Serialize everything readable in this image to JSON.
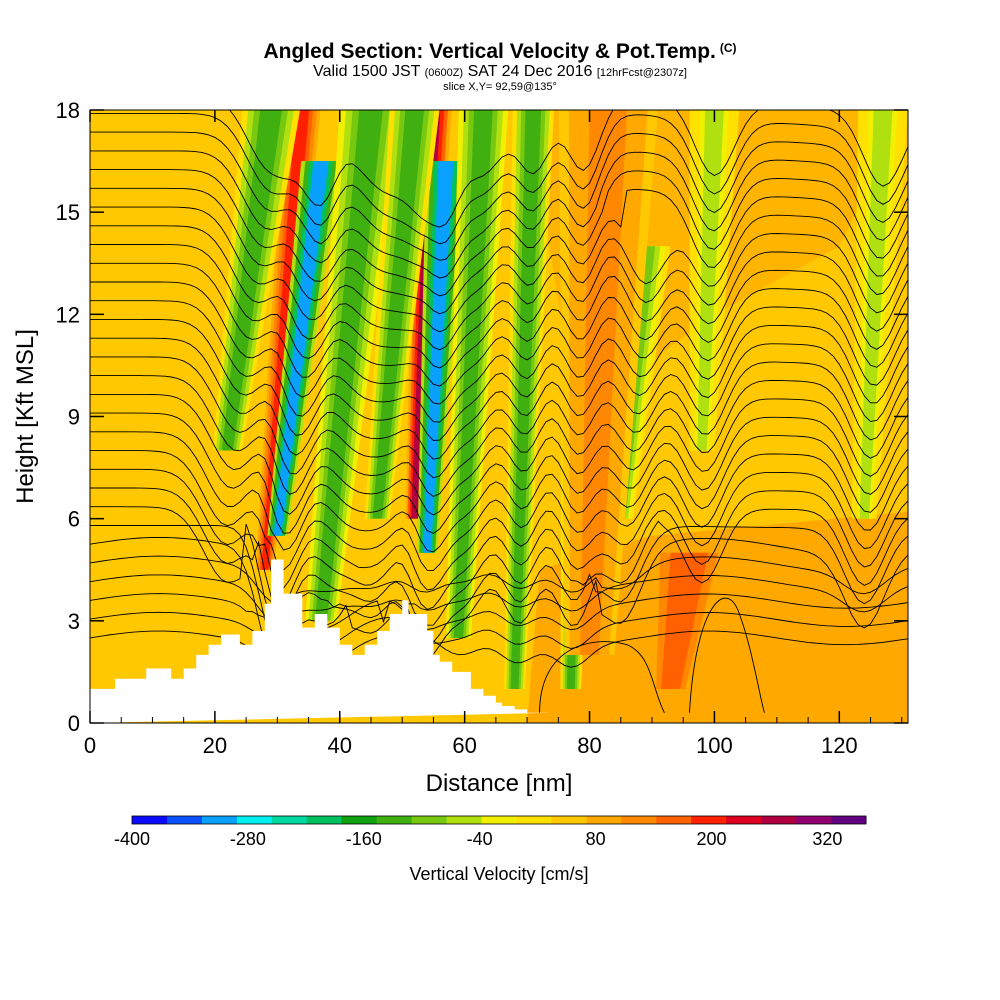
{
  "title": {
    "main": "Angled Section: Vertical Velocity & Pot.Temp.",
    "badge": "(C)",
    "valid_prefix": "Valid 1500 JST",
    "valid_utc": "(0600Z)",
    "valid_date": "SAT 24 Dec 2016",
    "forecast": "[12hrFcst@2307z]",
    "slice": "slice X,Y= 92,59@135°"
  },
  "chart_data": {
    "type": "heatmap",
    "xlabel": "Distance [nm]",
    "ylabel": "Height [Kft MSL]",
    "xlim": [
      0,
      131
    ],
    "ylim": [
      0,
      18
    ],
    "x_ticks": [
      0,
      20,
      40,
      60,
      80,
      100,
      120
    ],
    "y_ticks": [
      0,
      3,
      6,
      9,
      12,
      15,
      18
    ],
    "colorbar": {
      "label": "Vertical Velocity [cm/s]",
      "range": [
        -400,
        360
      ],
      "tick_labels": [
        -400,
        -280,
        -160,
        -40,
        80,
        200,
        320
      ],
      "colors": [
        "#0a0aff",
        "#0a50ff",
        "#0aa0ff",
        "#00f0f0",
        "#00d8a0",
        "#00c060",
        "#10a010",
        "#40b010",
        "#78c810",
        "#b0e010",
        "#f0f000",
        "#ffe000",
        "#ffc800",
        "#ffa800",
        "#ff8800",
        "#ff6000",
        "#ff2000",
        "#e00020",
        "#b00040",
        "#900070",
        "#600080"
      ]
    },
    "background_velocity": 40,
    "plumes": [
      {
        "x_top": 34,
        "x_bottom": 28,
        "y_top": 18,
        "y_bottom": 4.5,
        "value": 190,
        "width": 2.2
      },
      {
        "x_top": 37,
        "x_bottom": 30,
        "y_top": 16.5,
        "y_bottom": 5.5,
        "value": -300,
        "width": 2.4
      },
      {
        "x_top": 29,
        "x_bottom": 22,
        "y_top": 18,
        "y_bottom": 8,
        "value": -120,
        "width": 3.5
      },
      {
        "x_top": 45,
        "x_bottom": 37,
        "y_top": 18,
        "y_bottom": 3,
        "value": -140,
        "width": 3.8
      },
      {
        "x_top": 55,
        "x_bottom": 52,
        "y_top": 18,
        "y_bottom": 6,
        "value": 260,
        "width": 2.2
      },
      {
        "x_top": 57,
        "x_bottom": 54,
        "y_top": 16.5,
        "y_bottom": 5,
        "value": -300,
        "width": 2.4
      },
      {
        "x_top": 52,
        "x_bottom": 46,
        "y_top": 18,
        "y_bottom": 6,
        "value": -120,
        "width": 3.0
      },
      {
        "x_top": 63,
        "x_bottom": 59,
        "y_top": 18,
        "y_bottom": 2.5,
        "value": -130,
        "width": 3.0
      },
      {
        "x_top": 71,
        "x_bottom": 68,
        "y_top": 18,
        "y_bottom": 1,
        "value": -120,
        "width": 2.5
      },
      {
        "x_top": 79,
        "x_bottom": 77,
        "y_top": 18,
        "y_bottom": 1,
        "value": -120,
        "width": 2.5
      },
      {
        "x_top": 89,
        "x_bottom": 85,
        "y_top": 14,
        "y_bottom": 6,
        "value": -80,
        "width": 3.0
      },
      {
        "x_top": 100,
        "x_bottom": 98,
        "y_top": 18,
        "y_bottom": 8,
        "value": -40,
        "width": 3.0
      },
      {
        "x_top": 127,
        "x_bottom": 124,
        "y_top": 18,
        "y_bottom": 6,
        "value": -40,
        "width": 3.0
      },
      {
        "x_top": 83,
        "x_bottom": 80,
        "y_top": 18,
        "y_bottom": 2,
        "value": 120,
        "width": 6
      },
      {
        "x_top": 96,
        "x_bottom": 93,
        "y_top": 5,
        "y_bottom": 1,
        "value": 170,
        "width": 6
      }
    ],
    "terrain": {
      "x": [
        0,
        4,
        4,
        9,
        9,
        13,
        13,
        15,
        15,
        17,
        17,
        19,
        19,
        21,
        21,
        24,
        24,
        26,
        26,
        28,
        28,
        29,
        29,
        31,
        31,
        34,
        34,
        36,
        36,
        38,
        38,
        40,
        40,
        42,
        42,
        44,
        44,
        46,
        46,
        48,
        48,
        50,
        50,
        51,
        51,
        54,
        54,
        55,
        55,
        56,
        56,
        58,
        58,
        61,
        61,
        63,
        63,
        65,
        65,
        66,
        66,
        68,
        68,
        70,
        70,
        72,
        72,
        74,
        74,
        131
      ],
      "y": [
        1.0,
        1.0,
        1.3,
        1.3,
        1.6,
        1.6,
        1.3,
        1.3,
        1.6,
        1.6,
        2.0,
        2.0,
        2.3,
        2.3,
        2.6,
        2.6,
        2.3,
        2.3,
        2.7,
        2.7,
        3.5,
        3.5,
        4.8,
        4.8,
        3.8,
        3.8,
        2.8,
        2.8,
        3.2,
        3.2,
        2.8,
        2.8,
        2.3,
        2.3,
        2.0,
        2.0,
        2.3,
        2.3,
        2.7,
        2.7,
        3.2,
        3.2,
        3.6,
        3.6,
        3.2,
        3.2,
        2.7,
        2.7,
        2.0,
        2.0,
        1.8,
        1.8,
        1.5,
        1.5,
        1.0,
        1.0,
        0.8,
        0.8,
        0.6,
        0.6,
        0.5,
        0.5,
        0.4,
        0.4,
        0.3,
        0.3,
        0.3,
        0.3,
        0.3
      ]
    }
  }
}
